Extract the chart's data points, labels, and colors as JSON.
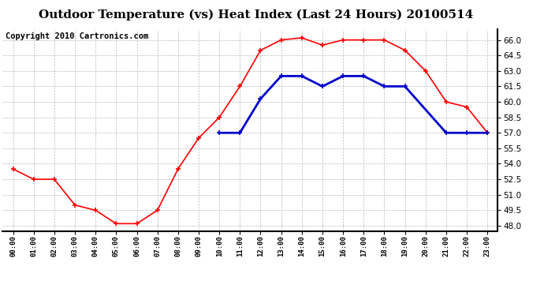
{
  "title": "Outdoor Temperature (vs) Heat Index (Last 24 Hours) 20100514",
  "copyright": "Copyright 2010 Cartronics.com",
  "hours": [
    "00:00",
    "01:00",
    "02:00",
    "03:00",
    "04:00",
    "05:00",
    "06:00",
    "07:00",
    "08:00",
    "09:00",
    "10:00",
    "11:00",
    "12:00",
    "13:00",
    "14:00",
    "15:00",
    "16:00",
    "17:00",
    "18:00",
    "19:00",
    "20:00",
    "21:00",
    "22:00",
    "23:00"
  ],
  "temp": [
    53.5,
    52.5,
    52.5,
    50.0,
    49.5,
    48.2,
    48.2,
    49.5,
    53.5,
    56.5,
    58.5,
    61.5,
    65.0,
    66.0,
    66.2,
    65.5,
    66.0,
    66.0,
    66.0,
    65.0,
    63.0,
    60.0,
    59.5,
    57.0
  ],
  "heat_index": [
    null,
    null,
    null,
    null,
    null,
    null,
    null,
    null,
    null,
    null,
    57.0,
    57.0,
    60.3,
    62.5,
    62.5,
    61.5,
    62.5,
    62.5,
    61.5,
    61.5,
    null,
    57.0,
    57.0,
    57.0
  ],
  "temp_color": "#FF0000",
  "heat_color": "#0000CC",
  "bg_color": "#FFFFFF",
  "plot_bg_color": "#FFFFFF",
  "grid_color": "#BBBBBB",
  "ylim": [
    47.5,
    67.0
  ],
  "yticks": [
    48.0,
    49.5,
    51.0,
    52.5,
    54.0,
    55.5,
    57.0,
    58.5,
    60.0,
    61.5,
    63.0,
    64.5,
    66.0
  ],
  "title_fontsize": 11,
  "copyright_fontsize": 7.5,
  "figsize": [
    6.9,
    3.75
  ],
  "dpi": 100
}
